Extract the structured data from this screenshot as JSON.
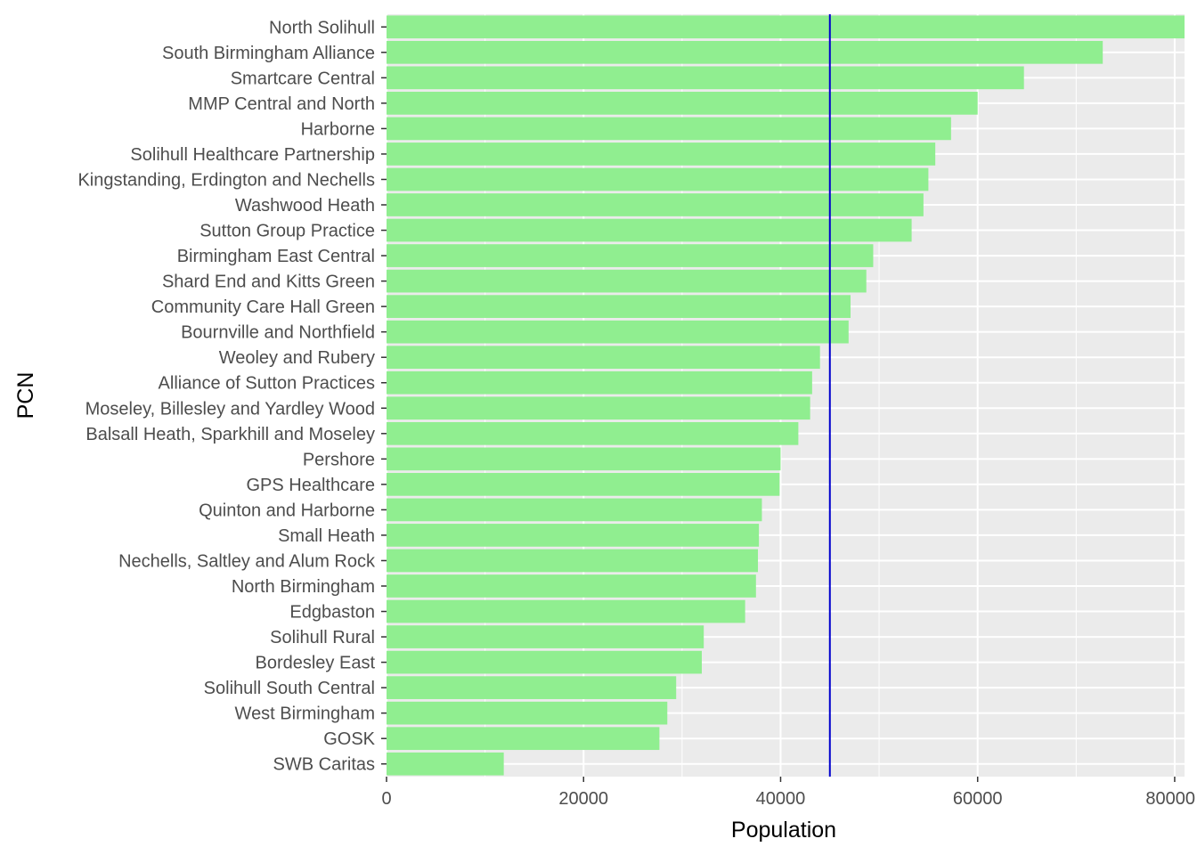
{
  "chart_data": {
    "type": "bar",
    "orientation": "horizontal",
    "xlabel": "Population",
    "ylabel": "PCN",
    "xlim": [
      0,
      81000
    ],
    "x_ticks": [
      0,
      20000,
      40000,
      60000,
      80000
    ],
    "x_tick_labels": [
      "0",
      "20000",
      "40000",
      "60000",
      "80000"
    ],
    "grid": true,
    "reference_line": {
      "value": 45000,
      "color": "#0000cd"
    },
    "colors": {
      "bar": "#90ee90",
      "panel": "#ebebeb",
      "grid": "#ffffff"
    },
    "categories": [
      "North Solihull",
      "South Birmingham Alliance",
      "Smartcare Central",
      "MMP Central and North",
      "Harborne",
      "Solihull Healthcare Partnership",
      "Kingstanding, Erdington and Nechells",
      "Washwood Heath",
      "Sutton Group Practice",
      "Birmingham East Central",
      "Shard End and Kitts Green",
      "Community Care Hall Green",
      "Bournville and Northfield",
      "Weoley and Rubery",
      "Alliance of Sutton Practices",
      "Moseley, Billesley and Yardley Wood",
      "Balsall Heath, Sparkhill and Moseley",
      "Pershore",
      "GPS Healthcare",
      "Quinton and Harborne",
      "Small Heath",
      "Nechells, Saltley and Alum Rock",
      "North Birmingham",
      "Edgbaston",
      "Solihull Rural",
      "Bordesley East",
      "Solihull South Central",
      "West Birmingham",
      "GOSK",
      "SWB Caritas"
    ],
    "values": [
      81000,
      72700,
      64700,
      60000,
      57300,
      55700,
      55000,
      54500,
      53300,
      49400,
      48700,
      47100,
      46900,
      44000,
      43200,
      43000,
      41800,
      40000,
      39900,
      38100,
      37800,
      37700,
      37500,
      36400,
      32200,
      32000,
      29400,
      28500,
      27700,
      11900
    ]
  }
}
